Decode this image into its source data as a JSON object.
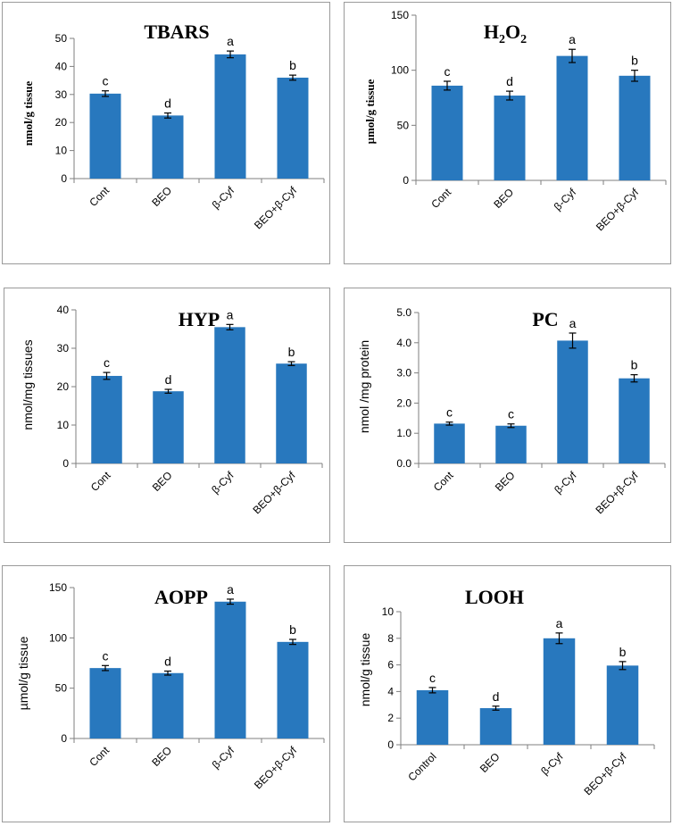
{
  "colors": {
    "bar": "#2878be",
    "axis": "#7f7f7f",
    "error": "#000000",
    "border": "#9a9a9a"
  },
  "chart_data": [
    {
      "id": "tbars",
      "type": "bar",
      "title": "TBARS",
      "ylabel": "nmol/g tissue",
      "categories": [
        "Cont",
        "BEO",
        "β-Cyf",
        "BEO+β-Cyf"
      ],
      "values": [
        30.3,
        22.5,
        44.3,
        36.0
      ],
      "errors": [
        1.0,
        0.9,
        1.2,
        0.9
      ],
      "letters": [
        "c",
        "d",
        "a",
        "b"
      ],
      "ylim": [
        0,
        50
      ],
      "yticks": [
        "0",
        "10",
        "20",
        "30",
        "40",
        "50"
      ]
    },
    {
      "id": "h2o2",
      "type": "bar",
      "title": "H",
      "title_sub1": "2",
      "title_mid": "O",
      "title_sub2": "2",
      "ylabel": "µmol/g tissue",
      "categories": [
        "Cont",
        "BEO",
        "β-Cyf",
        "BEO+β-Cyf"
      ],
      "values": [
        86,
        77,
        113,
        95
      ],
      "errors": [
        4,
        4,
        6,
        5
      ],
      "letters": [
        "c",
        "d",
        "a",
        "b"
      ],
      "ylim": [
        0,
        150
      ],
      "yticks": [
        "0",
        "50",
        "100",
        "150"
      ]
    },
    {
      "id": "hyp",
      "type": "bar",
      "title": "HYP",
      "ylabel": "nmol/mg tissues",
      "categories": [
        "Cont",
        "BEO",
        "β-Cyf",
        "BEO+β-Cyf"
      ],
      "values": [
        22.8,
        18.8,
        35.5,
        26.0
      ],
      "errors": [
        0.9,
        0.5,
        0.7,
        0.5
      ],
      "letters": [
        "c",
        "d",
        "a",
        "b"
      ],
      "ylim": [
        0,
        40
      ],
      "yticks": [
        "0",
        "10",
        "20",
        "30",
        "40"
      ]
    },
    {
      "id": "pc",
      "type": "bar",
      "title": "PC",
      "ylabel": "nmol /mg protein",
      "categories": [
        "Cont",
        "BEO",
        "β-Cyf",
        "BEO+β-Cyf"
      ],
      "values": [
        1.32,
        1.25,
        4.07,
        2.82
      ],
      "errors": [
        0.05,
        0.06,
        0.25,
        0.12
      ],
      "letters": [
        "c",
        "c",
        "a",
        "b"
      ],
      "ylim": [
        0,
        5
      ],
      "yticks": [
        "0.0",
        "1.0",
        "2.0",
        "3.0",
        "4.0",
        "5.0"
      ]
    },
    {
      "id": "aopp",
      "type": "bar",
      "title": "AOPP",
      "ylabel": "µmol/g tissue",
      "categories": [
        "Cont",
        "BEO",
        "β-Cyf",
        "BEO+β-Cyf"
      ],
      "values": [
        70,
        65,
        136,
        96
      ],
      "errors": [
        2.5,
        2,
        2.5,
        2.5
      ],
      "letters": [
        "c",
        "d",
        "a",
        "b"
      ],
      "ylim": [
        0,
        150
      ],
      "yticks": [
        "0",
        "50",
        "100",
        "150"
      ]
    },
    {
      "id": "looh",
      "type": "bar",
      "title": "LOOH",
      "ylabel": "nmol/g tissue",
      "categories": [
        "Control",
        "BEO",
        "β-Cyf",
        "BEO+β-Cyf"
      ],
      "values": [
        4.1,
        2.75,
        8.0,
        5.95
      ],
      "errors": [
        0.2,
        0.15,
        0.4,
        0.3
      ],
      "letters": [
        "c",
        "d",
        "a",
        "b"
      ],
      "ylim": [
        0,
        10
      ],
      "yticks": [
        "0",
        "2",
        "4",
        "6",
        "8",
        "10"
      ]
    }
  ]
}
